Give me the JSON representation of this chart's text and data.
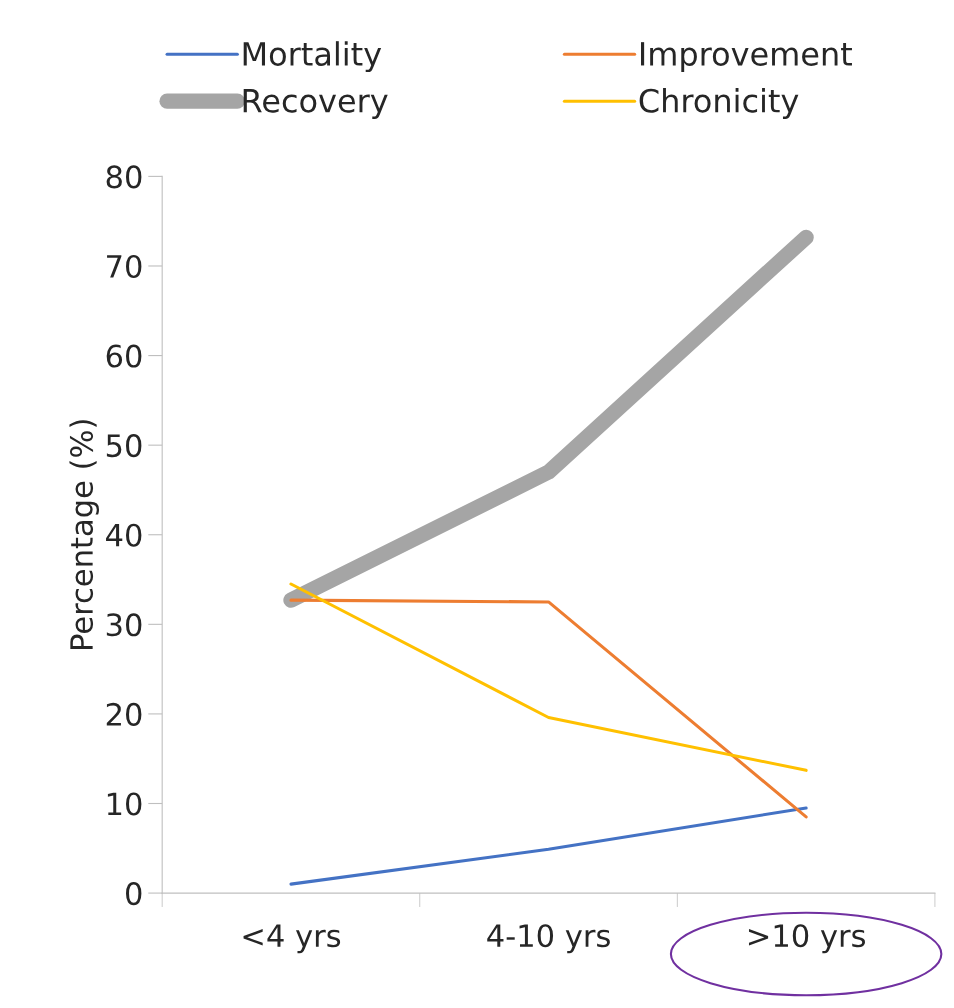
{
  "chart_data": {
    "type": "line",
    "ylabel": "Percentage (%)",
    "categories": [
      "<4 yrs",
      "4-10 yrs",
      ">10 yrs"
    ],
    "series": [
      {
        "name": "Mortality",
        "color": "#4472c4",
        "values": [
          1.0,
          4.9,
          9.5
        ]
      },
      {
        "name": "Improvement",
        "color": "#ed7d31",
        "values": [
          32.7,
          32.5,
          8.5
        ]
      },
      {
        "name": "Recovery",
        "color": "#a5a5a5",
        "values": [
          32.7,
          47.0,
          73.2
        ]
      },
      {
        "name": "Chronicity",
        "color": "#ffc000",
        "values": [
          34.5,
          19.6,
          13.7
        ]
      }
    ],
    "ylim": [
      0,
      80
    ],
    "yticks": [
      0,
      10,
      20,
      30,
      40,
      50,
      60,
      70,
      80
    ],
    "grid": false,
    "legend": "top",
    "marker": "none",
    "line_style": "solid"
  }
}
